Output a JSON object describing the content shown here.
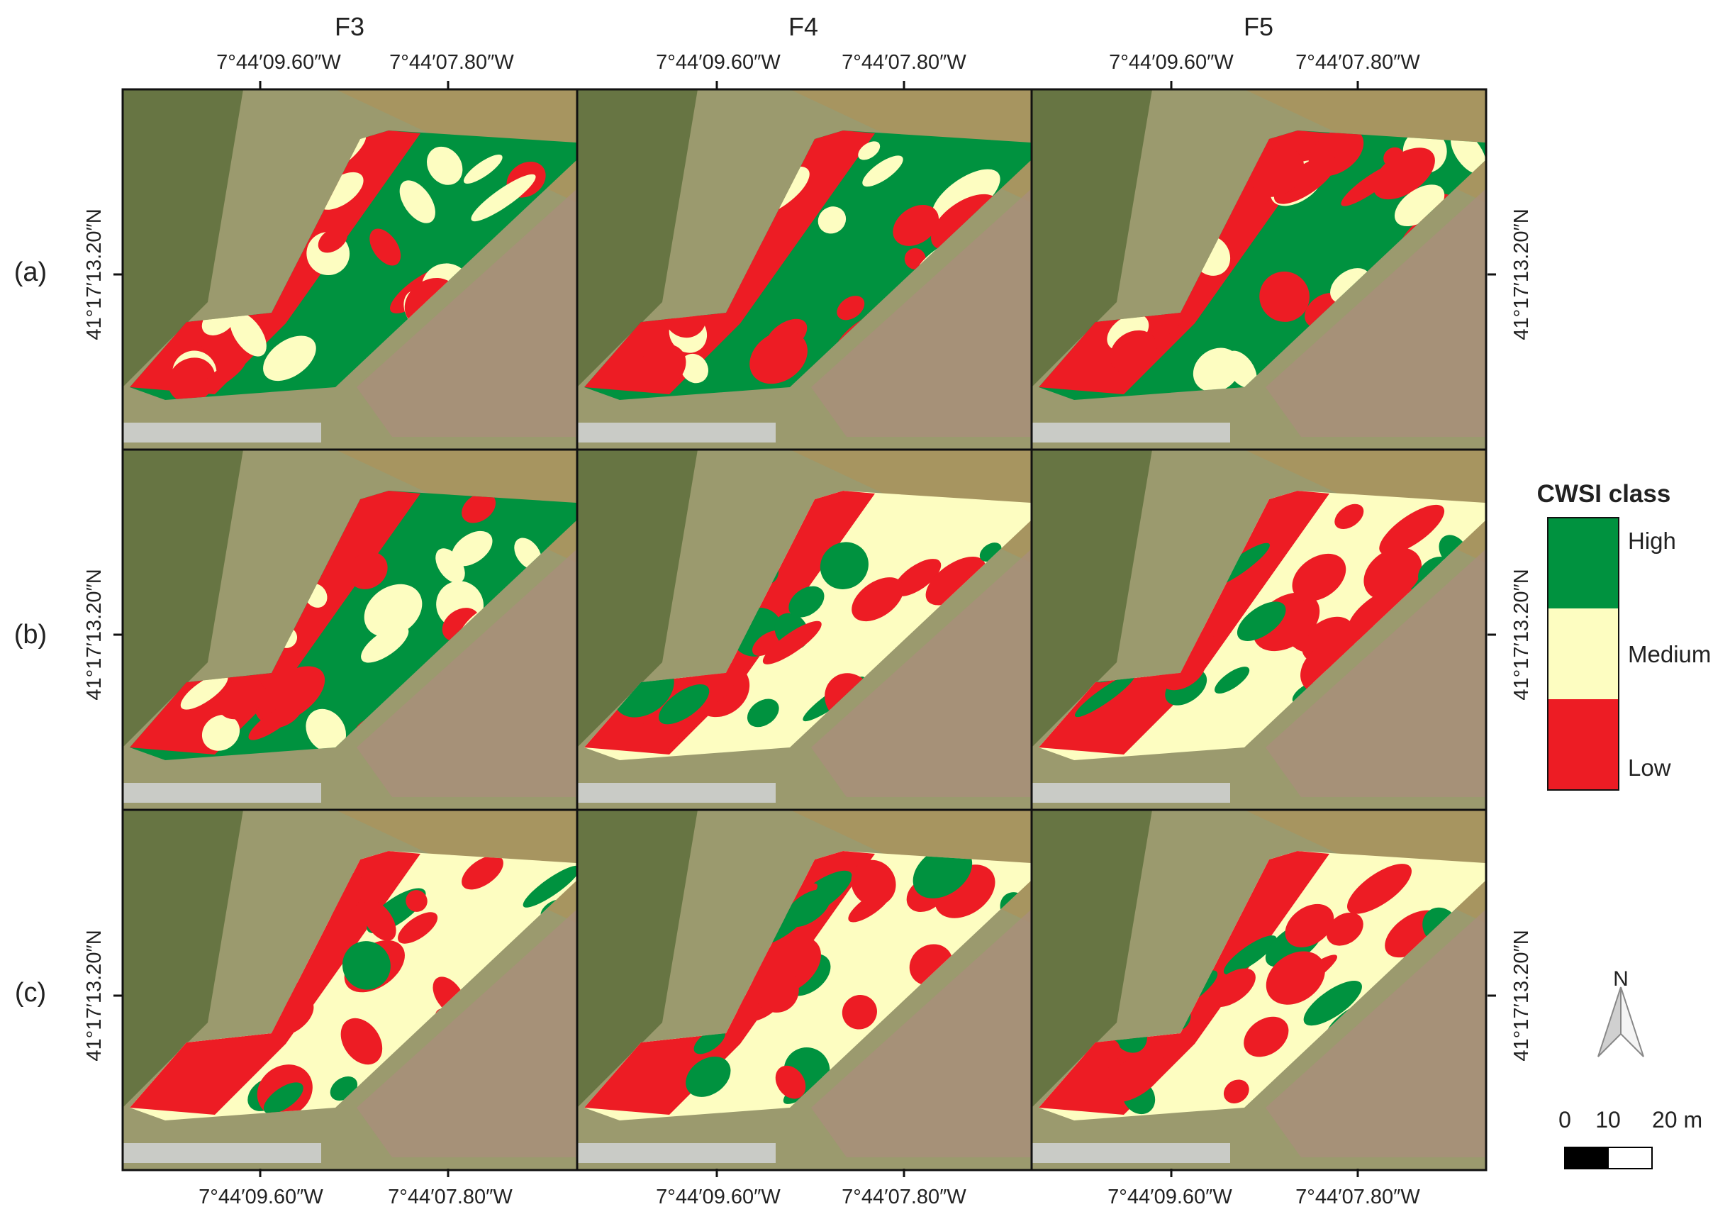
{
  "columns": [
    "F3",
    "F4",
    "F5"
  ],
  "rows": [
    "(a)",
    "(b)",
    "(c)"
  ],
  "longitude_ticks": [
    "7°44′09.60″W",
    "7°44′07.80″W"
  ],
  "latitude_tick": "41°17′13.20″N",
  "legend": {
    "title": "CWSI class",
    "classes": [
      {
        "label": "High",
        "color": "#00923f"
      },
      {
        "label": "Medium",
        "color": "#fdfdc1"
      },
      {
        "label": "Low",
        "color": "#ed1c24"
      }
    ]
  },
  "north_arrow": {
    "label": "N",
    "icon": "north-arrow-icon"
  },
  "scale_bar": {
    "labels": [
      "0",
      "10",
      "20 m"
    ]
  },
  "colors": {
    "high": "#00923f",
    "medium": "#fdfdc1",
    "low": "#ed1c24",
    "panel_border": "#111111"
  },
  "panels": [
    {
      "row": "(a)",
      "col": "F3",
      "dominant": "High"
    },
    {
      "row": "(a)",
      "col": "F4",
      "dominant": "High"
    },
    {
      "row": "(a)",
      "col": "F5",
      "dominant": "High"
    },
    {
      "row": "(b)",
      "col": "F3",
      "dominant": "High"
    },
    {
      "row": "(b)",
      "col": "F4",
      "dominant": "Medium"
    },
    {
      "row": "(b)",
      "col": "F5",
      "dominant": "Medium"
    },
    {
      "row": "(c)",
      "col": "F3",
      "dominant": "Medium"
    },
    {
      "row": "(c)",
      "col": "F4",
      "dominant": "Medium"
    },
    {
      "row": "(c)",
      "col": "F5",
      "dominant": "Medium"
    }
  ]
}
